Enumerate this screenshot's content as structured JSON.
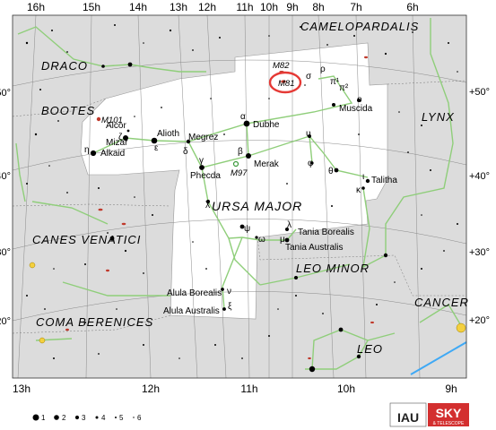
{
  "constellation": "URSA MAJOR",
  "ra_top": [
    "16h",
    "15h",
    "14h",
    "13h",
    "12h",
    "11h",
    "10h",
    "9h",
    "8h",
    "7h",
    "6h"
  ],
  "ra_bottom": [
    "13h",
    "12h",
    "11h",
    "10h",
    "9h"
  ],
  "dec_left": [
    "+50°",
    "+40°",
    "+30°",
    "+20°"
  ],
  "dec_right": [
    "+50°",
    "+40°",
    "+30°",
    "+20°"
  ],
  "neighbors": [
    "CAMELOPARDALIS",
    "DRACO",
    "BOOTES",
    "LYNX",
    "CANES VENATICI",
    "LEO MINOR",
    "CANCER",
    "COMA BERENICES",
    "LEO"
  ],
  "stars": {
    "dubhe": "Dubhe",
    "merak": "Merak",
    "phecda": "Phecda",
    "megrez": "Megrez",
    "alioth": "Alioth",
    "mizar": "Mizar",
    "alcor": "Alcor",
    "alkaid": "Alkaid",
    "muscida": "Muscida",
    "talitha": "Talitha",
    "tania_borealis": "Tania Borealis",
    "tania_australis": "Tania Australis",
    "alula_borealis": "Alula Borealis",
    "alula_australis": "Alula Australis"
  },
  "greek": {
    "alpha": "α",
    "beta": "β",
    "gamma": "γ",
    "delta": "δ",
    "epsilon": "ε",
    "zeta": "ζ",
    "eta": "η",
    "chi": "χ",
    "psi": "ψ",
    "omega": "ω",
    "mu": "μ",
    "lambda": "λ",
    "upsilon": "υ",
    "theta": "θ",
    "phi": "φ",
    "iota": "ι",
    "kappa": "κ",
    "nu": "ν",
    "xi": "ξ",
    "omicron": "ο",
    "pi1": "π¹",
    "pi2": "π²",
    "sigma": "σ",
    "rho": "ρ"
  },
  "deep_sky": [
    "M81",
    "M82",
    "M97",
    "M101"
  ],
  "magnitude_legend": [
    "1",
    "2",
    "3",
    "4",
    "5",
    "6"
  ],
  "logos": {
    "iau": "IAU",
    "sky": "SKY",
    "telescope": "& TELESCOPE"
  },
  "colors": {
    "sky_fill": "#dcdcdc",
    "constellation_fill": "#ffffff",
    "figure_lines": "#8fce7a",
    "grid": "#8a8a8a",
    "m81_ring": "#e53935",
    "galaxy": "#c0392b",
    "sky_logo": "#d32f2f",
    "ecliptic": "#3fa9f5",
    "planet": "#f4d03f"
  }
}
